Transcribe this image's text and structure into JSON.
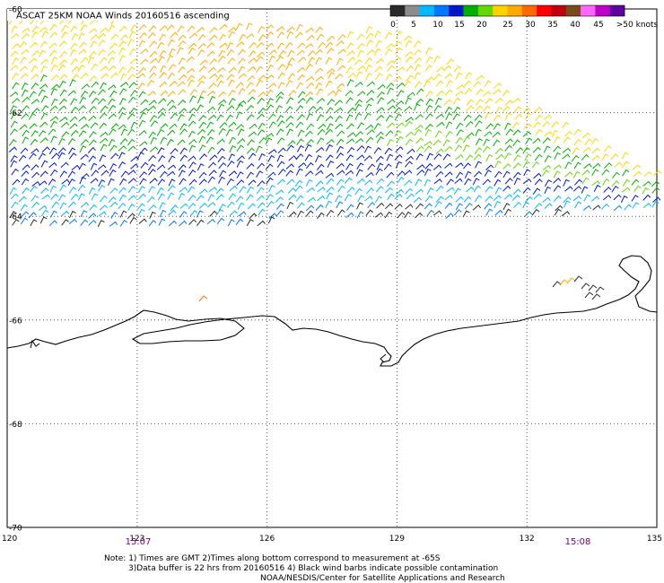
{
  "title": "ASCAT 25KM NOAA Winds 20160516 ascending",
  "legend": {
    "labels": [
      "0",
      "5",
      "10",
      "15",
      "20",
      "25",
      "30",
      "35",
      "40",
      "45",
      ">50 knots"
    ],
    "colors": [
      "#2a2a2a",
      "#8c8c8c",
      "#00b8ff",
      "#0078ff",
      "#0018c8",
      "#00b000",
      "#62d800",
      "#ffd200",
      "#ffaa00",
      "#ff6a00",
      "#ff0000",
      "#c00010",
      "#7a4a1a",
      "#ff66ff",
      "#c000c8",
      "#6000a0"
    ]
  },
  "map": {
    "lon_range": [
      120,
      135
    ],
    "lat_range": [
      -70,
      -60
    ],
    "lon_ticks": [
      "120",
      "123",
      "126",
      "129",
      "132",
      "135"
    ],
    "lat_ticks": [
      "-60",
      "-62",
      "-64",
      "-66",
      "-68",
      "-70"
    ],
    "grid": true,
    "times": {
      "color": "#800080",
      "items": [
        "15:07",
        "15:08"
      ]
    }
  },
  "notes": {
    "line1": "Note: 1) Times are GMT 2)Times along bottom correspond to measurement at -65S",
    "line2": "3)Data buffer is 22 hrs from 20160516 4) Black wind barbs indicate possible contamination",
    "line3": "NOAA/NESDIS/Center for Satellite Applications and Research"
  }
}
